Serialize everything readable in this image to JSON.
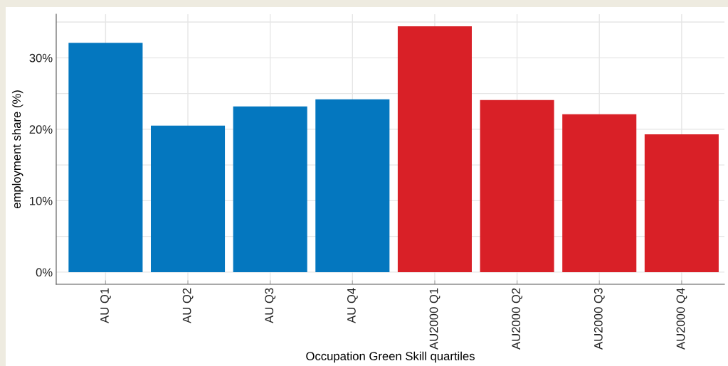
{
  "chart_data": {
    "type": "bar",
    "xlabel": "Occupation Green Skill quartiles",
    "ylabel": "employment share (%)",
    "categories": [
      "AU Q1",
      "AU Q2",
      "AU Q3",
      "AU Q4",
      "AU2000 Q1",
      "AU2000 Q2",
      "AU2000 Q3",
      "AU2000 Q4"
    ],
    "values": [
      32.1,
      20.5,
      23.2,
      24.2,
      34.4,
      24.1,
      22.1,
      19.3
    ],
    "colors": [
      "#0477bf",
      "#0477bf",
      "#0477bf",
      "#0477bf",
      "#d92027",
      "#d92027",
      "#d92027",
      "#d92027"
    ],
    "ylim": [
      -1.7,
      36.1
    ],
    "yticks": [
      {
        "value": 0,
        "label": "0%"
      },
      {
        "value": 5,
        "label": null
      },
      {
        "value": 10,
        "label": "10%"
      },
      {
        "value": 15,
        "label": null
      },
      {
        "value": 20,
        "label": "20%"
      },
      {
        "value": 25,
        "label": null
      },
      {
        "value": 30,
        "label": "30%"
      },
      {
        "value": 35,
        "label": null
      }
    ],
    "grid": true
  }
}
